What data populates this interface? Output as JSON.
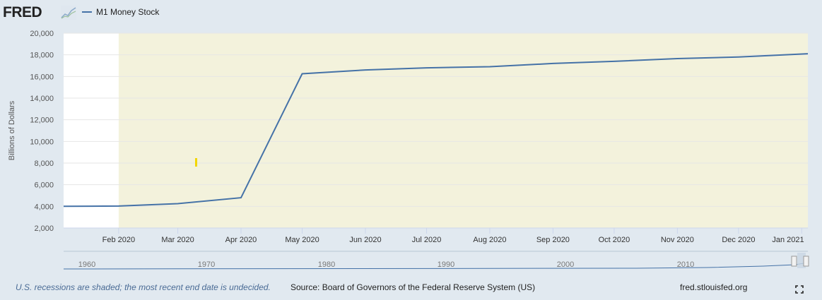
{
  "header": {
    "logo_text": "FRED",
    "legend_label": "M1 Money Stock"
  },
  "colors": {
    "series": "#4572a7",
    "recession": "#f3f2dc",
    "plot_bg": "#ffffff",
    "page_bg": "#e1e9f0"
  },
  "chart_data": {
    "type": "line",
    "title": "",
    "xlabel": "",
    "ylabel": "Billions of Dollars",
    "ylim": [
      2000,
      20000
    ],
    "yticks": [
      "2,000",
      "4,000",
      "6,000",
      "8,000",
      "10,000",
      "12,000",
      "14,000",
      "16,000",
      "18,000",
      "20,000"
    ],
    "ytick_values": [
      2000,
      4000,
      6000,
      8000,
      10000,
      12000,
      14000,
      16000,
      18000,
      20000
    ],
    "xtick_labels": [
      "Feb 2020",
      "Mar 2020",
      "Apr 2020",
      "May 2020",
      "Jun 2020",
      "Jul 2020",
      "Aug 2020",
      "Sep 2020",
      "Oct 2020",
      "Nov 2020",
      "Dec 2020",
      "Jan 2021"
    ],
    "xlim": [
      "2020-01-05",
      "2021-01-04"
    ],
    "grid": true,
    "legend_placement": "top-left",
    "recession_shading": {
      "start": "2020-02-01",
      "end": "2021-01-04"
    },
    "series": [
      {
        "name": "M1 Money Stock",
        "x": [
          "2020-01-05",
          "2020-02-01",
          "2020-03-01",
          "2020-04-01",
          "2020-05-01",
          "2020-06-01",
          "2020-07-01",
          "2020-08-01",
          "2020-09-01",
          "2020-10-01",
          "2020-11-01",
          "2020-12-01",
          "2021-01-04"
        ],
        "values": [
          4000,
          4030,
          4250,
          4800,
          16250,
          16600,
          16800,
          16900,
          17200,
          17400,
          17650,
          17800,
          18100
        ]
      }
    ],
    "navigator": {
      "labels": [
        "1960",
        "1970",
        "1980",
        "1990",
        "2000",
        "2010"
      ]
    }
  },
  "footer": {
    "note": "U.S. recessions are shaded; the most recent end date is undecided.",
    "source": "Source: Board of Governors of the Federal Reserve System (US)",
    "site": "fred.stlouisfed.org"
  }
}
